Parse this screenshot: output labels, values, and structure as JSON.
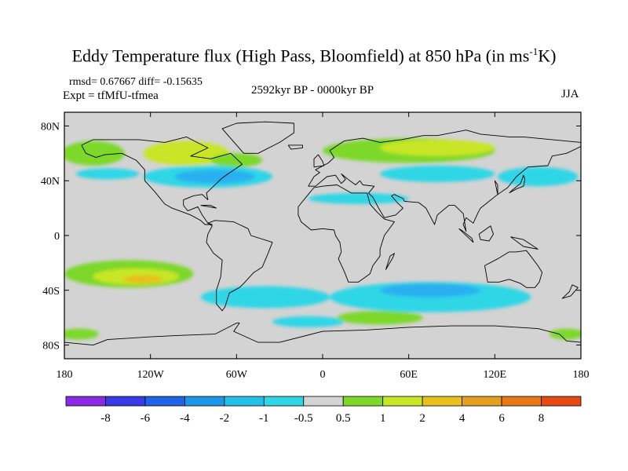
{
  "title": {
    "main": "Eddy Temperature flux (High Pass, Bloomfield) at 850 hPa (in ms",
    "sup": "-1",
    "end": "K)"
  },
  "stats": "rmsd= 0.67667 diff= -0.15635",
  "expt": "Expt = tfMfU-tfmea",
  "period": "2592kyr BP - 0000kyr BP",
  "season": "JJA",
  "colors": {
    "neutral": "#d3d3d3",
    "pos05": "#7dd82a",
    "pos1": "#c8e628",
    "pos2": "#e6c01e",
    "pos4": "#e6a020",
    "neg05": "#2fd6e6",
    "neg1": "#2cb0f0",
    "neg2": "#1f78e6",
    "coast": "#000000"
  },
  "map": {
    "lat_ticks": [
      {
        "label": "80N",
        "lat": 80
      },
      {
        "label": "40N",
        "lat": 40
      },
      {
        "label": "0",
        "lat": 0
      },
      {
        "label": "40S",
        "lat": -40
      },
      {
        "label": "80S",
        "lat": -80
      }
    ],
    "lon_ticks": [
      {
        "label": "180",
        "lon": -180
      },
      {
        "label": "120W",
        "lon": -120
      },
      {
        "label": "60W",
        "lon": -60
      },
      {
        "label": "0",
        "lon": 0
      },
      {
        "label": "60E",
        "lon": 60
      },
      {
        "label": "120E",
        "lon": 120
      },
      {
        "label": "180",
        "lon": 180
      }
    ]
  },
  "colorbar": {
    "bins": [
      "#8a2be2",
      "#3a3ae6",
      "#1f64e6",
      "#1e96e6",
      "#22bfe6",
      "#2fd6e6",
      "#d3d3d3",
      "#7dd82a",
      "#c8e628",
      "#e6c01e",
      "#e6a020",
      "#e67818",
      "#e64a14"
    ],
    "labels": [
      "-8",
      "-6",
      "-4",
      "-2",
      "-1",
      "-0.5",
      "0.5",
      "1",
      "2",
      "4",
      "6",
      "8"
    ]
  },
  "features": [
    {
      "lon": -160,
      "lat": 60,
      "rx": 22,
      "ry": 9,
      "color": "pos05"
    },
    {
      "lon": -95,
      "lat": 60,
      "rx": 30,
      "ry": 9,
      "color": "pos1"
    },
    {
      "lon": -60,
      "lat": 55,
      "rx": 18,
      "ry": 5,
      "color": "pos05"
    },
    {
      "lon": 60,
      "lat": 62,
      "rx": 60,
      "ry": 9,
      "color": "pos05"
    },
    {
      "lon": 80,
      "lat": 64,
      "rx": 40,
      "ry": 6,
      "color": "pos1"
    },
    {
      "lon": -150,
      "lat": 45,
      "rx": 22,
      "ry": 4,
      "color": "neg05"
    },
    {
      "lon": -80,
      "lat": 43,
      "rx": 45,
      "ry": 8,
      "color": "neg05"
    },
    {
      "lon": -75,
      "lat": 43,
      "rx": 28,
      "ry": 5,
      "color": "neg1"
    },
    {
      "lon": 25,
      "lat": 27,
      "rx": 35,
      "ry": 4,
      "color": "neg05"
    },
    {
      "lon": 80,
      "lat": 45,
      "rx": 40,
      "ry": 6,
      "color": "neg05"
    },
    {
      "lon": 150,
      "lat": 43,
      "rx": 28,
      "ry": 7,
      "color": "neg05"
    },
    {
      "lon": -135,
      "lat": -28,
      "rx": 45,
      "ry": 10,
      "color": "pos05"
    },
    {
      "lon": -130,
      "lat": -30,
      "rx": 30,
      "ry": 6,
      "color": "pos1"
    },
    {
      "lon": -125,
      "lat": -32,
      "rx": 14,
      "ry": 3,
      "color": "pos2"
    },
    {
      "lon": -40,
      "lat": -45,
      "rx": 45,
      "ry": 8,
      "color": "neg05"
    },
    {
      "lon": 75,
      "lat": -45,
      "rx": 70,
      "ry": 11,
      "color": "neg05"
    },
    {
      "lon": 75,
      "lat": -40,
      "rx": 35,
      "ry": 5,
      "color": "neg1"
    },
    {
      "lon": -10,
      "lat": -63,
      "rx": 25,
      "ry": 4,
      "color": "neg05"
    },
    {
      "lon": 40,
      "lat": -60,
      "rx": 30,
      "ry": 5,
      "color": "pos05"
    },
    {
      "lon": -170,
      "lat": -72,
      "rx": 14,
      "ry": 4,
      "color": "pos05"
    },
    {
      "lon": 170,
      "lat": -72,
      "rx": 12,
      "ry": 4,
      "color": "pos05"
    }
  ],
  "coastlines": [
    [
      [
        -168,
        66
      ],
      [
        -160,
        70
      ],
      [
        -140,
        70
      ],
      [
        -128,
        70
      ],
      [
        -110,
        68
      ],
      [
        -95,
        72
      ],
      [
        -80,
        64
      ],
      [
        -92,
        58
      ],
      [
        -78,
        56
      ],
      [
        -64,
        60
      ],
      [
        -56,
        52
      ],
      [
        -66,
        45
      ],
      [
        -70,
        42
      ],
      [
        -76,
        36
      ],
      [
        -81,
        31
      ],
      [
        -80,
        26
      ],
      [
        -84,
        30
      ],
      [
        -90,
        29
      ],
      [
        -97,
        26
      ],
      [
        -97,
        22
      ],
      [
        -94,
        18
      ],
      [
        -87,
        21
      ],
      [
        -84,
        15
      ],
      [
        -80,
        9
      ],
      [
        -77,
        8
      ],
      [
        -82,
        8
      ],
      [
        -85,
        11
      ],
      [
        -92,
        15
      ],
      [
        -105,
        20
      ],
      [
        -110,
        23
      ],
      [
        -117,
        32
      ],
      [
        -124,
        40
      ],
      [
        -124,
        48
      ],
      [
        -130,
        55
      ],
      [
        -140,
        60
      ],
      [
        -152,
        59
      ],
      [
        -158,
        57
      ],
      [
        -165,
        60
      ],
      [
        -168,
        66
      ]
    ],
    [
      [
        -80,
        9
      ],
      [
        -75,
        11
      ],
      [
        -62,
        10
      ],
      [
        -52,
        5
      ],
      [
        -50,
        0
      ],
      [
        -35,
        -5
      ],
      [
        -38,
        -13
      ],
      [
        -42,
        -23
      ],
      [
        -48,
        -27
      ],
      [
        -55,
        -35
      ],
      [
        -58,
        -38
      ],
      [
        -65,
        -42
      ],
      [
        -68,
        -52
      ],
      [
        -70,
        -55
      ],
      [
        -74,
        -50
      ],
      [
        -74,
        -40
      ],
      [
        -71,
        -30
      ],
      [
        -70,
        -18
      ],
      [
        -76,
        -13
      ],
      [
        -81,
        -5
      ],
      [
        -80,
        1
      ],
      [
        -77,
        7
      ],
      [
        -80,
        9
      ]
    ],
    [
      [
        -55,
        60
      ],
      [
        -45,
        60
      ],
      [
        -30,
        68
      ],
      [
        -20,
        75
      ],
      [
        -20,
        82
      ],
      [
        -40,
        83
      ],
      [
        -60,
        82
      ],
      [
        -70,
        78
      ],
      [
        -55,
        60
      ]
    ],
    [
      [
        -10,
        36
      ],
      [
        -6,
        43
      ],
      [
        -2,
        46
      ],
      [
        -5,
        48
      ],
      [
        4,
        53
      ],
      [
        8,
        57
      ],
      [
        5,
        62
      ],
      [
        15,
        69
      ],
      [
        28,
        71
      ],
      [
        40,
        68
      ],
      [
        55,
        70
      ],
      [
        70,
        73
      ],
      [
        80,
        73
      ],
      [
        100,
        77
      ],
      [
        110,
        74
      ],
      [
        130,
        72
      ],
      [
        140,
        72
      ],
      [
        160,
        70
      ],
      [
        180,
        68
      ],
      [
        180,
        65
      ],
      [
        170,
        60
      ],
      [
        160,
        58
      ],
      [
        157,
        51
      ],
      [
        143,
        50
      ],
      [
        135,
        43
      ],
      [
        129,
        35
      ],
      [
        122,
        30
      ],
      [
        122,
        37
      ],
      [
        120,
        40
      ],
      [
        122,
        30
      ],
      [
        110,
        20
      ],
      [
        108,
        16
      ],
      [
        105,
        9
      ],
      [
        100,
        13
      ],
      [
        98,
        8
      ],
      [
        100,
        3
      ],
      [
        98,
        16
      ],
      [
        92,
        22
      ],
      [
        88,
        22
      ],
      [
        80,
        15
      ],
      [
        78,
        8
      ],
      [
        72,
        20
      ],
      [
        67,
        24
      ],
      [
        57,
        25
      ],
      [
        56,
        27
      ],
      [
        50,
        30
      ],
      [
        48,
        29
      ],
      [
        52,
        24
      ],
      [
        56,
        20
      ],
      [
        51,
        15
      ],
      [
        43,
        13
      ],
      [
        39,
        20
      ],
      [
        35,
        28
      ],
      [
        32,
        31
      ],
      [
        36,
        36
      ],
      [
        28,
        37
      ],
      [
        26,
        40
      ],
      [
        23,
        37
      ],
      [
        19,
        40
      ],
      [
        13,
        45
      ],
      [
        16,
        41
      ],
      [
        13,
        38
      ],
      [
        9,
        44
      ],
      [
        3,
        43
      ],
      [
        -5,
        36
      ],
      [
        -10,
        36
      ]
    ],
    [
      [
        -17,
        21
      ],
      [
        -17,
        15
      ],
      [
        -15,
        10
      ],
      [
        -8,
        4
      ],
      [
        0,
        5
      ],
      [
        8,
        4
      ],
      [
        9,
        0
      ],
      [
        12,
        -5
      ],
      [
        13,
        -12
      ],
      [
        11,
        -17
      ],
      [
        15,
        -26
      ],
      [
        18,
        -34
      ],
      [
        25,
        -34
      ],
      [
        33,
        -28
      ],
      [
        35,
        -22
      ],
      [
        40,
        -15
      ],
      [
        40,
        -10
      ],
      [
        43,
        0
      ],
      [
        50,
        10
      ],
      [
        43,
        12
      ],
      [
        38,
        17
      ],
      [
        33,
        23
      ],
      [
        31,
        31
      ],
      [
        20,
        31
      ],
      [
        10,
        37
      ],
      [
        0,
        36
      ],
      [
        -6,
        35
      ],
      [
        -10,
        30
      ],
      [
        -17,
        21
      ]
    ],
    [
      [
        113,
        -22
      ],
      [
        115,
        -34
      ],
      [
        123,
        -34
      ],
      [
        130,
        -32
      ],
      [
        138,
        -35
      ],
      [
        142,
        -38
      ],
      [
        148,
        -38
      ],
      [
        151,
        -34
      ],
      [
        153,
        -27
      ],
      [
        150,
        -22
      ],
      [
        145,
        -15
      ],
      [
        142,
        -11
      ],
      [
        135,
        -12
      ],
      [
        130,
        -12
      ],
      [
        122,
        -17
      ],
      [
        113,
        -22
      ]
    ],
    [
      [
        -180,
        -78
      ],
      [
        -160,
        -80
      ],
      [
        -150,
        -76
      ],
      [
        -120,
        -74
      ],
      [
        -100,
        -73
      ],
      [
        -75,
        -72
      ],
      [
        -60,
        -64
      ],
      [
        -58,
        -64
      ],
      [
        -62,
        -70
      ],
      [
        -45,
        -78
      ],
      [
        -30,
        -78
      ],
      [
        0,
        -70
      ],
      [
        30,
        -69
      ],
      [
        60,
        -67
      ],
      [
        90,
        -66
      ],
      [
        120,
        -66
      ],
      [
        150,
        -68
      ],
      [
        165,
        -72
      ],
      [
        170,
        -77
      ],
      [
        180,
        -78
      ]
    ],
    [
      [
        -6,
        50
      ],
      [
        1,
        51
      ],
      [
        0,
        54
      ],
      [
        -3,
        59
      ],
      [
        -6,
        56
      ],
      [
        -6,
        50
      ]
    ],
    [
      [
        130,
        31
      ],
      [
        135,
        34
      ],
      [
        140,
        36
      ],
      [
        141,
        41
      ],
      [
        140,
        44
      ],
      [
        138,
        38
      ],
      [
        132,
        33
      ],
      [
        130,
        31
      ]
    ],
    [
      [
        95,
        5
      ],
      [
        105,
        -5
      ],
      [
        104,
        -2
      ],
      [
        98,
        3
      ],
      [
        95,
        5
      ]
    ],
    [
      [
        109,
        1
      ],
      [
        117,
        7
      ],
      [
        119,
        1
      ],
      [
        116,
        -4
      ],
      [
        110,
        -3
      ],
      [
        109,
        1
      ]
    ],
    [
      [
        131,
        -1
      ],
      [
        140,
        -3
      ],
      [
        150,
        -10
      ],
      [
        140,
        -8
      ],
      [
        131,
        -1
      ]
    ],
    [
      [
        44,
        -25
      ],
      [
        49,
        -16
      ],
      [
        50,
        -13
      ],
      [
        47,
        -15
      ],
      [
        44,
        -25
      ]
    ],
    [
      [
        172,
        -41
      ],
      [
        174,
        -36
      ],
      [
        178,
        -38
      ],
      [
        173,
        -44
      ],
      [
        167,
        -46
      ],
      [
        172,
        -41
      ]
    ],
    [
      [
        -24,
        66
      ],
      [
        -14,
        66
      ],
      [
        -14,
        64
      ],
      [
        -22,
        63
      ],
      [
        -24,
        66
      ]
    ],
    [
      [
        -85,
        22
      ],
      [
        -74,
        20
      ],
      [
        -78,
        22
      ],
      [
        -85,
        22
      ]
    ]
  ]
}
